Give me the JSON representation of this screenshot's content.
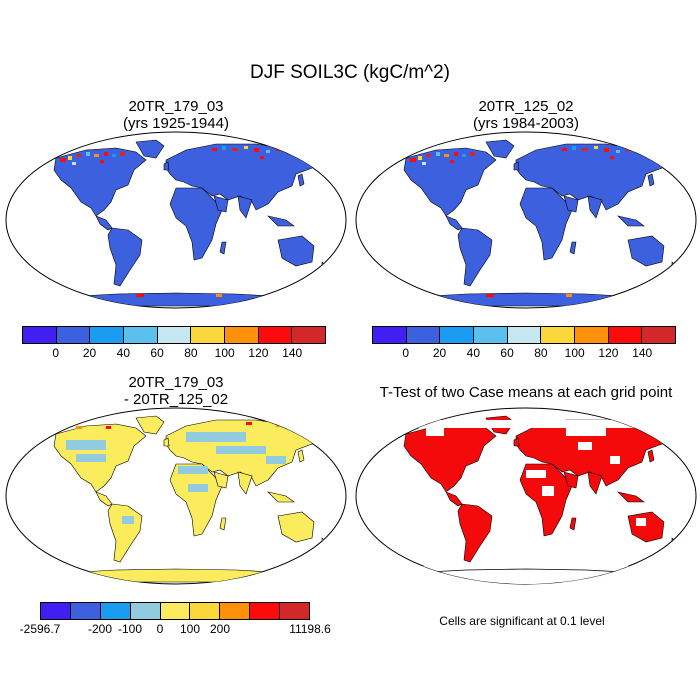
{
  "title": "DJF SOIL3C (kgC/m^2)",
  "panels": [
    {
      "title1": "20TR_179_03",
      "title2": "(yrs 1925-1944)"
    },
    {
      "title1": "20TR_125_02",
      "title2": "(yrs 1984-2003)"
    },
    {
      "title1": "20TR_179_03",
      "title2": "- 20TR_125_02"
    },
    {
      "title1": "T-Test of two Case means at each grid point",
      "title2": ""
    }
  ],
  "colorbar_abs": {
    "colors": [
      "#3f1ff2",
      "#3d60de",
      "#1a9df0",
      "#5cc0ed",
      "#c6e6f2",
      "#fad73a",
      "#fe900c",
      "#fb0b0b",
      "#d3282a"
    ],
    "ticks": [
      "0",
      "20",
      "40",
      "60",
      "80",
      "100",
      "120",
      "140"
    ]
  },
  "colorbar_diff": {
    "colors": [
      "#3f1ff2",
      "#3d60de",
      "#1a9df0",
      "#92cae0",
      "#faec5c",
      "#fad73a",
      "#fe900c",
      "#fb0b0b",
      "#d3282a"
    ],
    "ticks": [
      "-2596.7",
      "-200",
      "-100",
      "0",
      "100",
      "200",
      "11198.6"
    ]
  },
  "note": "Cells are significant at 0.1 level",
  "colors": {
    "map_abs_fill": "#3d60de",
    "map_diff_fill": "#faec5c",
    "map_diff_patch": "#92cae0",
    "ttest_fill": "#f40a0a"
  }
}
